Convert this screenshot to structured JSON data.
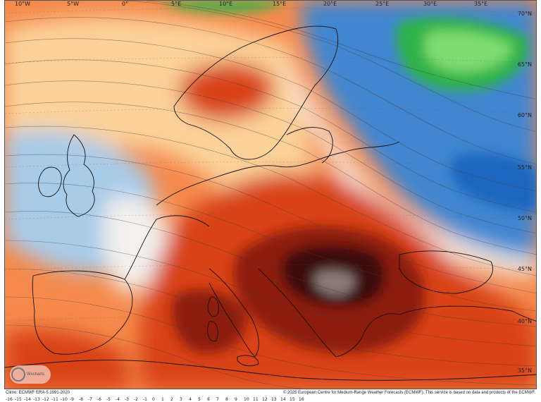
{
  "map": {
    "top_longitudes": [
      "10°W",
      "5°W",
      "0°",
      "5°E",
      "10°E",
      "15°E",
      "20°E",
      "25°E",
      "30°E",
      "35°E"
    ],
    "latitudes": [
      "70°N",
      "65°N",
      "60°N",
      "55°N",
      "50°N",
      "45°N",
      "40°N",
      "35°N"
    ]
  },
  "colors": {
    "extreme_heat": "#3d0f09",
    "very_hot": "#8c1c0e",
    "hot": "#d84315",
    "warm": "#f58a4c",
    "mild": "#fcd19a",
    "neutral": "#f3f1ee",
    "cool": "#a8cbe8",
    "cold": "#3f86d0",
    "very_cold": "#1a66bf",
    "green_anomaly": "#2db34a",
    "green_core": "#7ddc6f",
    "grey_core": "#8c7d78"
  },
  "footer": {
    "left": "Climo: ECMWF ERA-5 1991-2020",
    "right": "© 2025 European Centre for Medium-Range Weather Forecasts (ECMWF). This service is based on data and products of the ECMWF."
  },
  "scale_labels": [
    "-16",
    "-15",
    "-14",
    "-13",
    "-12",
    "-11",
    "-10",
    "-9",
    "-8",
    "-7",
    "-6",
    "-5",
    "-4",
    "-3",
    "-2",
    "-1",
    "0",
    "1",
    "2",
    "3",
    "4",
    "5",
    "6",
    "7",
    "8",
    "9",
    "10",
    "11",
    "12",
    "13",
    "14",
    "15",
    "16"
  ],
  "logo": {
    "text": "Wxcharts"
  }
}
